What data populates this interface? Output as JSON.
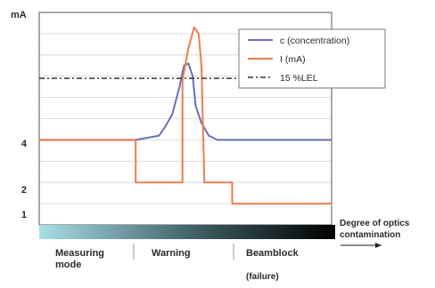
{
  "chart_data": {
    "type": "line",
    "ylabel": "mA",
    "y_ticks": [
      "1",
      "2",
      "4"
    ],
    "ylim": [
      0,
      10
    ],
    "xlim": [
      0,
      10
    ],
    "grid": true,
    "legend_position": "top-right",
    "legend": [
      {
        "key": "concentration",
        "label": "c (concentration)",
        "color": "#6b6fb3",
        "style": "solid"
      },
      {
        "key": "current",
        "label": "I (mA)",
        "color": "#ef7b4f",
        "style": "solid"
      },
      {
        "key": "threshold",
        "label": "15 %LEL",
        "color": "#333333",
        "style": "dash-dot"
      }
    ],
    "series": [
      {
        "key": "concentration",
        "points": [
          [
            0,
            4
          ],
          [
            3.3,
            4
          ],
          [
            4.1,
            4.2
          ],
          [
            4.3,
            4.6
          ],
          [
            4.55,
            5.2
          ],
          [
            4.8,
            6.5
          ],
          [
            4.95,
            7.5
          ],
          [
            5.1,
            7.6
          ],
          [
            5.25,
            7.0
          ],
          [
            5.35,
            5.6
          ],
          [
            5.55,
            4.8
          ],
          [
            5.8,
            4.2
          ],
          [
            6.1,
            4.0
          ],
          [
            10,
            4.0
          ]
        ]
      },
      {
        "key": "current",
        "points": [
          [
            0,
            4
          ],
          [
            3.3,
            4
          ],
          [
            3.3,
            2
          ],
          [
            4.9,
            2
          ],
          [
            4.9,
            6.8
          ],
          [
            5.1,
            8.3
          ],
          [
            5.3,
            9.3
          ],
          [
            5.45,
            9.0
          ],
          [
            5.55,
            7.5
          ],
          [
            5.65,
            2
          ],
          [
            6.6,
            2
          ],
          [
            6.6,
            1
          ],
          [
            10,
            1
          ]
        ]
      },
      {
        "key": "threshold",
        "points": [
          [
            0,
            6.9
          ],
          [
            10,
            6.9
          ]
        ]
      }
    ],
    "degradation_bar": {
      "label": "Degree of optics contamination",
      "gradient": [
        "#aadde6",
        "#3b5a60",
        "#000000"
      ]
    },
    "regions": [
      {
        "key": "measuring",
        "label": "Measuring mode"
      },
      {
        "key": "warning",
        "label": "Warning"
      },
      {
        "key": "beamblock",
        "label": "Beamblock",
        "sublabel": "(failure)"
      }
    ]
  },
  "colors": {
    "grid": "#d3d3d3",
    "axis": "#555555"
  }
}
